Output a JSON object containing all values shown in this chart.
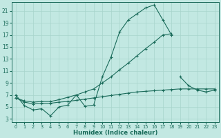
{
  "xlabel": "Humidex (Indice chaleur)",
  "bg_color": "#c2e8e2",
  "line_color": "#1a6b5a",
  "grid_color": "#a8d4cc",
  "xlim": [
    -0.5,
    23.5
  ],
  "ylim": [
    2.5,
    22.5
  ],
  "xticks": [
    0,
    1,
    2,
    3,
    4,
    5,
    6,
    7,
    8,
    9,
    10,
    11,
    12,
    13,
    14,
    15,
    16,
    17,
    18,
    19,
    20,
    21,
    22,
    23
  ],
  "yticks": [
    3,
    5,
    7,
    9,
    11,
    13,
    15,
    17,
    19,
    21
  ],
  "line_jagged_x": [
    0,
    1,
    2,
    3,
    4,
    5,
    6,
    7,
    8,
    9,
    10,
    11,
    12,
    13,
    14,
    15,
    16,
    17,
    18
  ],
  "line_jagged_y": [
    7.0,
    5.2,
    4.5,
    4.7,
    3.5,
    5.0,
    5.3,
    7.0,
    5.1,
    5.3,
    10.0,
    13.3,
    17.5,
    19.5,
    20.5,
    21.5,
    22.0,
    19.5,
    17.0
  ],
  "line_diag_x": [
    0,
    1,
    2,
    3,
    4,
    5,
    6,
    7,
    8,
    9,
    10,
    11,
    12,
    13,
    14,
    15,
    16,
    17,
    18
  ],
  "line_diag_y": [
    6.5,
    6.0,
    5.8,
    5.9,
    5.9,
    6.2,
    6.6,
    7.0,
    7.5,
    8.0,
    9.0,
    10.0,
    11.2,
    12.3,
    13.5,
    14.7,
    15.8,
    17.0,
    17.2
  ],
  "line_flat_x": [
    0,
    1,
    2,
    3,
    4,
    5,
    6,
    7,
    8,
    9,
    10,
    11,
    12,
    13,
    14,
    15,
    16,
    17,
    18,
    19,
    20,
    21,
    22,
    23
  ],
  "line_flat_y": [
    6.5,
    5.8,
    5.5,
    5.6,
    5.6,
    5.8,
    5.9,
    6.1,
    6.3,
    6.5,
    6.7,
    6.9,
    7.1,
    7.3,
    7.5,
    7.6,
    7.7,
    7.8,
    7.9,
    8.0,
    8.0,
    8.0,
    8.0,
    8.0
  ],
  "line_tail_x": [
    19,
    20,
    21,
    22,
    23
  ],
  "line_tail_y": [
    10.0,
    8.5,
    7.8,
    7.5,
    7.8
  ]
}
